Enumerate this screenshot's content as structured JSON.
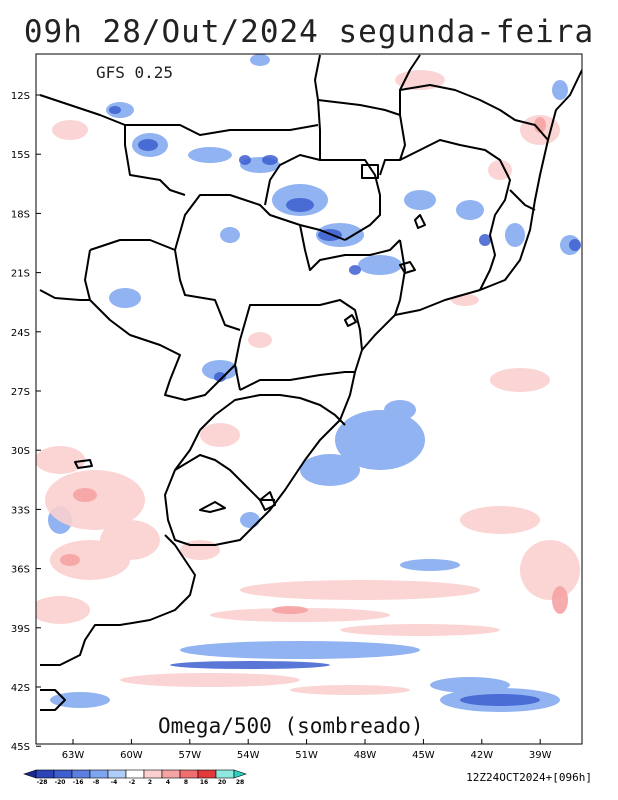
{
  "title": "09h 28/Out/2024 segunda-feira",
  "model": "GFS 0.25",
  "variable": "Omega/500 (sombreado)",
  "run_info": "12Z24OCT2024+[096h]",
  "lat_ticks": [
    "12S",
    "15S",
    "18S",
    "21S",
    "24S",
    "27S",
    "30S",
    "33S",
    "36S",
    "39S",
    "42S",
    "45S"
  ],
  "lon_ticks": [
    "63W",
    "60W",
    "57W",
    "54W",
    "51W",
    "48W",
    "45W",
    "42W",
    "39W"
  ],
  "colorbar": {
    "labels": [
      "-28",
      "-20",
      "-16",
      "-8",
      "-4",
      "-2",
      "2",
      "4",
      "8",
      "16",
      "20",
      "28"
    ],
    "colors": [
      "#1b2a8a",
      "#2c44b8",
      "#3d5fd0",
      "#5b7fe0",
      "#7ea6ef",
      "#aecdf8",
      "#ffffff",
      "#fbd0d0",
      "#f5a3a3",
      "#ef6f6f",
      "#e23a3a",
      "#8fe8e0",
      "#2fd0c0"
    ]
  }
}
